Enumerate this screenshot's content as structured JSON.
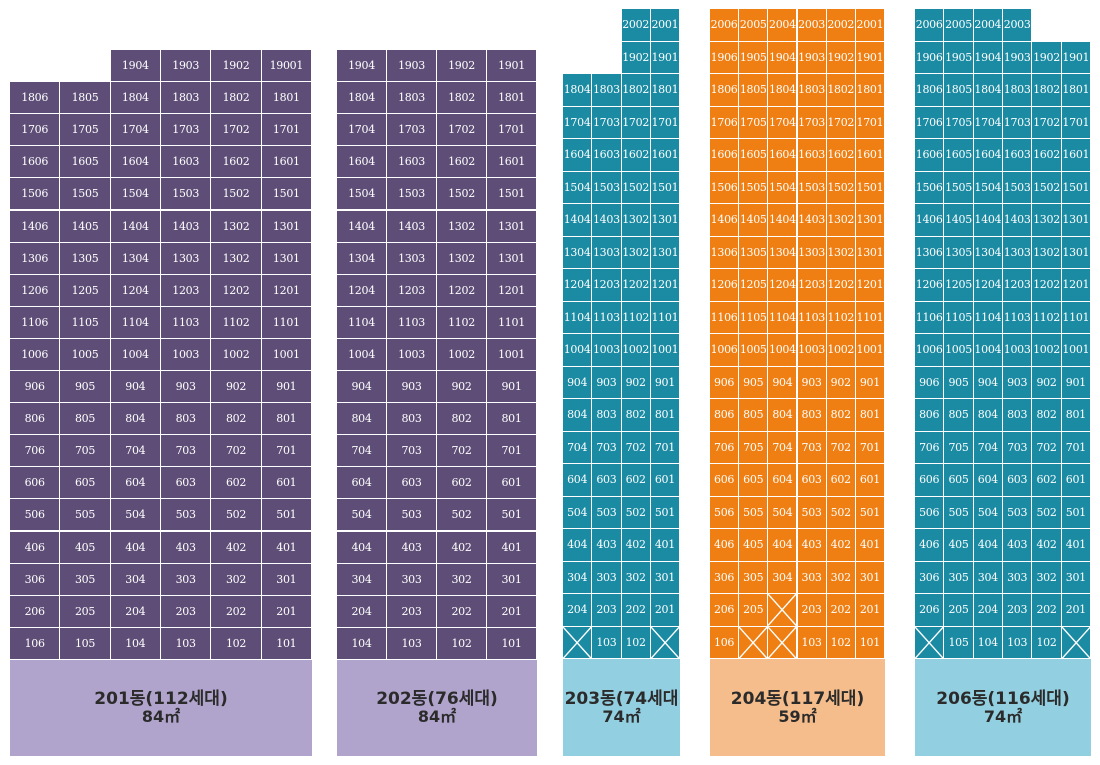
{
  "buildings": [
    {
      "id": "201",
      "name": "201동(112세대)",
      "area": "84㎡",
      "cell_color": "#5e4e77",
      "footer_color": "#b1a4cc",
      "rows": [
        [
          "",
          "",
          "1904",
          "1903",
          "1902",
          "19001"
        ],
        [
          "1806",
          "1805",
          "1804",
          "1803",
          "1802",
          "1801"
        ],
        [
          "1706",
          "1705",
          "1704",
          "1703",
          "1702",
          "1701"
        ],
        [
          "1606",
          "1605",
          "1604",
          "1603",
          "1602",
          "1601"
        ],
        [
          "1506",
          "1505",
          "1504",
          "1503",
          "1502",
          "1501"
        ],
        [
          "1406",
          "1405",
          "1404",
          "1403",
          "1302",
          "1301"
        ],
        [
          "1306",
          "1305",
          "1304",
          "1303",
          "1302",
          "1301"
        ],
        [
          "1206",
          "1205",
          "1204",
          "1203",
          "1202",
          "1201"
        ],
        [
          "1106",
          "1105",
          "1104",
          "1103",
          "1102",
          "1101"
        ],
        [
          "1006",
          "1005",
          "1004",
          "1003",
          "1002",
          "1001"
        ],
        [
          "906",
          "905",
          "904",
          "903",
          "902",
          "901"
        ],
        [
          "806",
          "805",
          "804",
          "803",
          "802",
          "801"
        ],
        [
          "706",
          "705",
          "704",
          "703",
          "702",
          "701"
        ],
        [
          "606",
          "605",
          "604",
          "603",
          "602",
          "601"
        ],
        [
          "506",
          "505",
          "504",
          "503",
          "502",
          "501"
        ],
        [
          "406",
          "405",
          "404",
          "403",
          "402",
          "401"
        ],
        [
          "306",
          "305",
          "304",
          "303",
          "302",
          "301"
        ],
        [
          "206",
          "205",
          "204",
          "203",
          "202",
          "201"
        ],
        [
          "106",
          "105",
          "104",
          "103",
          "102",
          "101"
        ]
      ]
    },
    {
      "id": "202",
      "name": "202동(76세대)",
      "area": "84㎡",
      "cell_color": "#5e4e77",
      "footer_color": "#b1a4cc",
      "rows": [
        [
          "1904",
          "1903",
          "1902",
          "1901"
        ],
        [
          "1804",
          "1803",
          "1802",
          "1801"
        ],
        [
          "1704",
          "1703",
          "1702",
          "1701"
        ],
        [
          "1604",
          "1603",
          "1602",
          "1601"
        ],
        [
          "1504",
          "1503",
          "1502",
          "1501"
        ],
        [
          "1404",
          "1403",
          "1302",
          "1301"
        ],
        [
          "1304",
          "1303",
          "1302",
          "1301"
        ],
        [
          "1204",
          "1203",
          "1202",
          "1201"
        ],
        [
          "1104",
          "1103",
          "1102",
          "1101"
        ],
        [
          "1004",
          "1003",
          "1002",
          "1001"
        ],
        [
          "904",
          "903",
          "902",
          "901"
        ],
        [
          "804",
          "803",
          "802",
          "801"
        ],
        [
          "704",
          "703",
          "702",
          "701"
        ],
        [
          "604",
          "603",
          "602",
          "601"
        ],
        [
          "504",
          "503",
          "502",
          "501"
        ],
        [
          "404",
          "403",
          "402",
          "401"
        ],
        [
          "304",
          "303",
          "302",
          "301"
        ],
        [
          "204",
          "203",
          "202",
          "201"
        ],
        [
          "104",
          "103",
          "102",
          "101"
        ]
      ]
    },
    {
      "id": "203",
      "name": "203동(74세대",
      "area": "74㎡",
      "cell_color": "#1a8ba3",
      "footer_color": "#92cfe0",
      "rows": [
        [
          "",
          "",
          "2002",
          "2001"
        ],
        [
          "",
          "",
          "1902",
          "1901"
        ],
        [
          "1804",
          "1803",
          "1802",
          "1801"
        ],
        [
          "1704",
          "1703",
          "1702",
          "1701"
        ],
        [
          "1604",
          "1603",
          "1602",
          "1601"
        ],
        [
          "1504",
          "1503",
          "1502",
          "1501"
        ],
        [
          "1404",
          "1403",
          "1302",
          "1301"
        ],
        [
          "1304",
          "1303",
          "1302",
          "1301"
        ],
        [
          "1204",
          "1203",
          "1202",
          "1201"
        ],
        [
          "1104",
          "1103",
          "1102",
          "1101"
        ],
        [
          "1004",
          "1003",
          "1002",
          "1001"
        ],
        [
          "904",
          "903",
          "902",
          "901"
        ],
        [
          "804",
          "803",
          "802",
          "801"
        ],
        [
          "704",
          "703",
          "702",
          "701"
        ],
        [
          "604",
          "603",
          "602",
          "601"
        ],
        [
          "504",
          "503",
          "502",
          "501"
        ],
        [
          "404",
          "403",
          "402",
          "401"
        ],
        [
          "304",
          "303",
          "302",
          "301"
        ],
        [
          "204",
          "203",
          "202",
          "201"
        ],
        [
          "X",
          "103",
          "102",
          "X"
        ]
      ]
    },
    {
      "id": "204",
      "name": "204동(117세대)",
      "area": "59㎡",
      "cell_color": "#ef7f12",
      "footer_color": "#f6bd8c",
      "rows": [
        [
          "2006",
          "2005",
          "2004",
          "2003",
          "2002",
          "2001"
        ],
        [
          "1906",
          "1905",
          "1904",
          "1903",
          "1902",
          "1901"
        ],
        [
          "1806",
          "1805",
          "1804",
          "1803",
          "1802",
          "1801"
        ],
        [
          "1706",
          "1705",
          "1704",
          "1703",
          "1702",
          "1701"
        ],
        [
          "1606",
          "1605",
          "1604",
          "1603",
          "1602",
          "1601"
        ],
        [
          "1506",
          "1505",
          "1504",
          "1503",
          "1502",
          "1501"
        ],
        [
          "1406",
          "1405",
          "1404",
          "1403",
          "1302",
          "1301"
        ],
        [
          "1306",
          "1305",
          "1304",
          "1303",
          "1302",
          "1301"
        ],
        [
          "1206",
          "1205",
          "1204",
          "1203",
          "1202",
          "1201"
        ],
        [
          "1106",
          "1105",
          "1104",
          "1103",
          "1102",
          "1101"
        ],
        [
          "1006",
          "1005",
          "1004",
          "1003",
          "1002",
          "1001"
        ],
        [
          "906",
          "905",
          "904",
          "903",
          "902",
          "901"
        ],
        [
          "806",
          "805",
          "804",
          "803",
          "802",
          "801"
        ],
        [
          "706",
          "705",
          "704",
          "703",
          "702",
          "701"
        ],
        [
          "606",
          "605",
          "604",
          "603",
          "602",
          "601"
        ],
        [
          "506",
          "505",
          "504",
          "503",
          "502",
          "501"
        ],
        [
          "406",
          "405",
          "404",
          "403",
          "402",
          "401"
        ],
        [
          "306",
          "305",
          "304",
          "303",
          "302",
          "301"
        ],
        [
          "206",
          "205",
          "X",
          "203",
          "202",
          "201"
        ],
        [
          "106",
          "X",
          "X",
          "103",
          "102",
          "101"
        ]
      ]
    },
    {
      "id": "206",
      "name": "206동(116세대)",
      "area": "74㎡",
      "cell_color": "#1a8ba3",
      "footer_color": "#92cfe0",
      "rows": [
        [
          "2006",
          "2005",
          "2004",
          "2003",
          "",
          ""
        ],
        [
          "1906",
          "1905",
          "1904",
          "1903",
          "1902",
          "1901"
        ],
        [
          "1806",
          "1805",
          "1804",
          "1803",
          "1802",
          "1801"
        ],
        [
          "1706",
          "1705",
          "1704",
          "1703",
          "1702",
          "1701"
        ],
        [
          "1606",
          "1605",
          "1604",
          "1603",
          "1602",
          "1601"
        ],
        [
          "1506",
          "1505",
          "1504",
          "1503",
          "1502",
          "1501"
        ],
        [
          "1406",
          "1405",
          "1404",
          "1403",
          "1302",
          "1301"
        ],
        [
          "1306",
          "1305",
          "1304",
          "1303",
          "1302",
          "1301"
        ],
        [
          "1206",
          "1205",
          "1204",
          "1203",
          "1202",
          "1201"
        ],
        [
          "1106",
          "1105",
          "1104",
          "1103",
          "1102",
          "1101"
        ],
        [
          "1006",
          "1005",
          "1004",
          "1003",
          "1002",
          "1001"
        ],
        [
          "906",
          "905",
          "904",
          "903",
          "902",
          "901"
        ],
        [
          "806",
          "805",
          "804",
          "803",
          "802",
          "801"
        ],
        [
          "706",
          "705",
          "704",
          "703",
          "702",
          "701"
        ],
        [
          "606",
          "605",
          "604",
          "603",
          "602",
          "601"
        ],
        [
          "506",
          "505",
          "504",
          "503",
          "502",
          "501"
        ],
        [
          "406",
          "405",
          "404",
          "403",
          "402",
          "401"
        ],
        [
          "306",
          "305",
          "304",
          "303",
          "302",
          "301"
        ],
        [
          "206",
          "205",
          "204",
          "203",
          "202",
          "201"
        ],
        [
          "X",
          "105",
          "104",
          "103",
          "102",
          "X"
        ]
      ]
    }
  ]
}
